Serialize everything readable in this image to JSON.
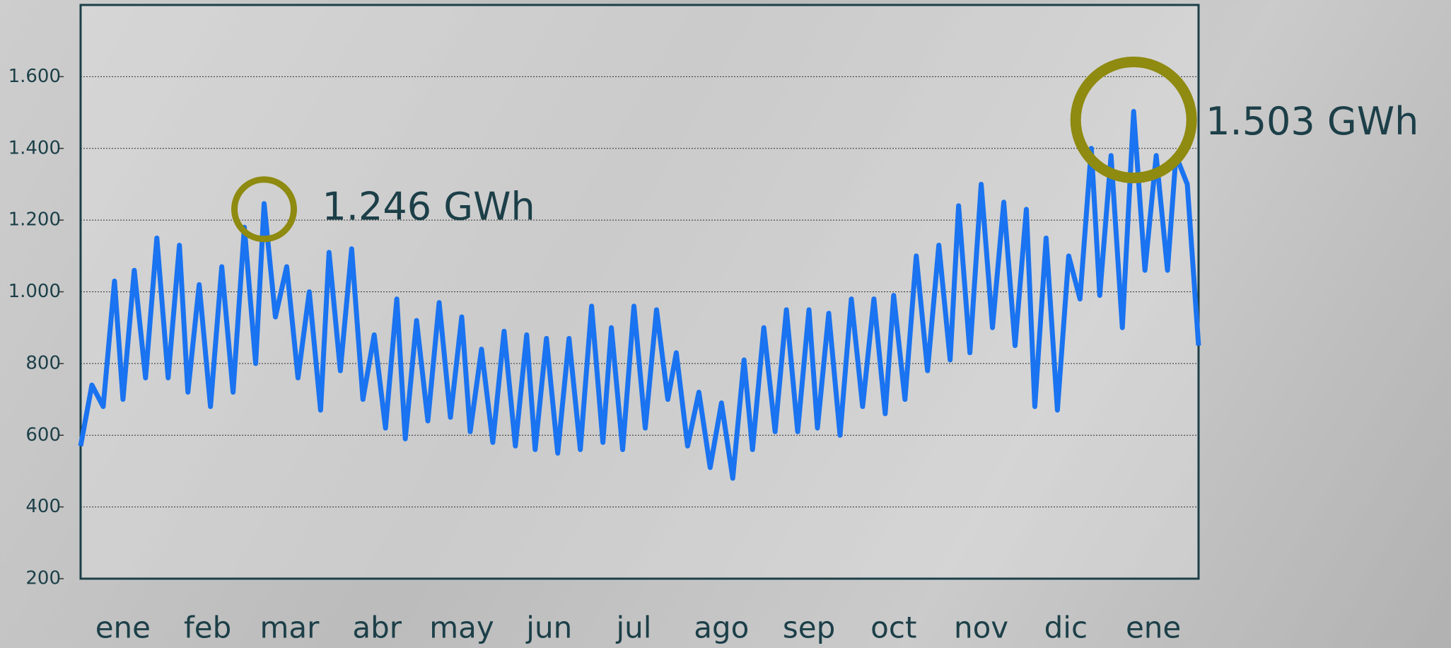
{
  "chart_data": {
    "type": "line",
    "x": [
      0,
      4,
      8,
      12,
      15,
      19,
      23,
      27,
      31,
      35,
      38,
      42,
      46,
      50,
      54,
      58,
      62,
      65,
      69,
      73,
      77,
      81,
      85,
      88,
      92,
      96,
      100,
      104,
      108,
      112,
      115,
      119,
      123,
      127,
      131,
      135,
      138,
      142,
      146,
      150,
      154,
      158,
      161,
      165,
      169,
      173,
      177,
      181,
      185,
      188,
      192,
      196,
      200,
      204,
      208,
      211,
      215,
      219,
      223,
      227,
      231,
      235,
      238,
      242,
      246,
      250,
      254,
      258,
      261,
      265,
      269,
      273,
      277,
      281,
      285,
      288,
      292,
      296,
      300,
      304,
      308,
      311,
      315,
      319,
      323,
      327,
      331,
      335,
      338,
      342,
      346,
      350,
      354,
      358,
      361,
      365,
      369,
      373,
      377,
      381,
      385,
      388,
      392,
      396
    ],
    "series": [
      {
        "color": "#1a73f0",
        "values": [
          570,
          740,
          680,
          1030,
          700,
          1060,
          760,
          1150,
          760,
          1130,
          720,
          1020,
          680,
          1070,
          720,
          1180,
          800,
          1246,
          930,
          1070,
          760,
          1000,
          670,
          1110,
          780,
          1120,
          700,
          880,
          620,
          980,
          590,
          920,
          640,
          970,
          650,
          930,
          610,
          840,
          580,
          890,
          570,
          880,
          560,
          870,
          550,
          870,
          560,
          960,
          580,
          900,
          560,
          960,
          620,
          950,
          700,
          830,
          570,
          720,
          510,
          690,
          480,
          810,
          560,
          900,
          610,
          950,
          610,
          950,
          620,
          940,
          600,
          980,
          680,
          980,
          660,
          990,
          700,
          1100,
          780,
          1130,
          810,
          1240,
          830,
          1300,
          900,
          1250,
          850,
          1230,
          680,
          1150,
          670,
          1100,
          980,
          1400,
          990,
          1380,
          900,
          1503,
          1060,
          1380,
          1060,
          1380,
          1300,
          850
        ]
      }
    ],
    "xlim": [
      0,
      396
    ],
    "xticks": [
      {
        "value": 15,
        "label": "ene"
      },
      {
        "value": 45,
        "label": "feb"
      },
      {
        "value": 74,
        "label": "mar"
      },
      {
        "value": 105,
        "label": "abr"
      },
      {
        "value": 135,
        "label": "may"
      },
      {
        "value": 166,
        "label": "jun"
      },
      {
        "value": 196,
        "label": "jul"
      },
      {
        "value": 227,
        "label": "ago"
      },
      {
        "value": 258,
        "label": "sep"
      },
      {
        "value": 288,
        "label": "oct"
      },
      {
        "value": 319,
        "label": "nov"
      },
      {
        "value": 349,
        "label": "dic"
      },
      {
        "value": 380,
        "label": "ene"
      }
    ],
    "ylim": [
      200,
      1800
    ],
    "yticks": [
      200,
      400,
      600,
      800,
      {
        "value": 1000,
        "label": "1.000"
      },
      {
        "value": 1200,
        "label": "1.200"
      },
      {
        "value": 1400,
        "label": "1.400"
      },
      {
        "value": 1600,
        "label": "1.600"
      }
    ],
    "grid": true,
    "annotations": [
      {
        "label": "1.246 GWh",
        "value": 1246,
        "color": "#8f8a10"
      },
      {
        "label": "1.503 GWh",
        "value": 1503,
        "color": "#8f8a10"
      }
    ]
  }
}
